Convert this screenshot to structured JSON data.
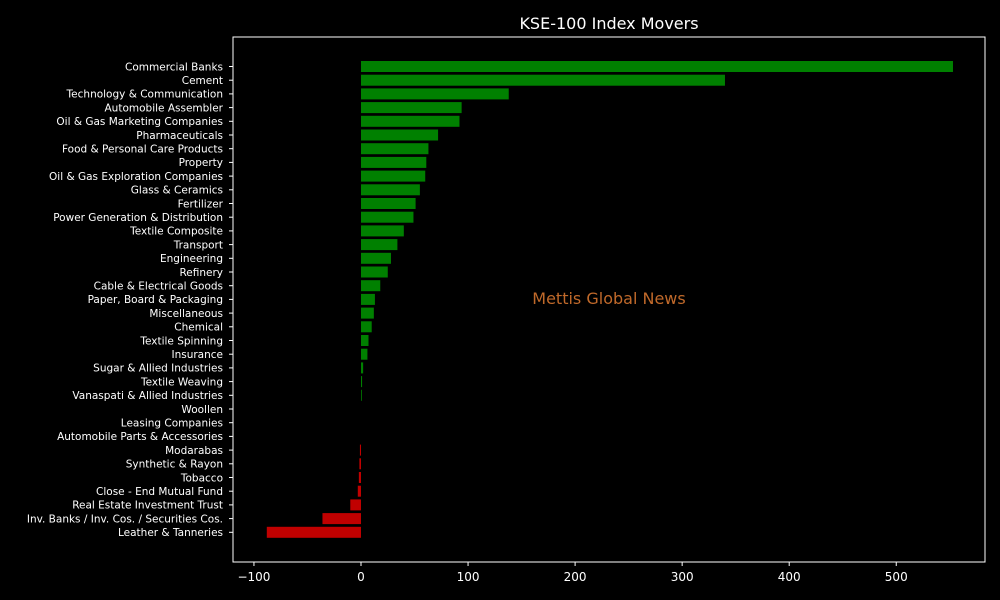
{
  "chart_data": {
    "type": "bar",
    "orientation": "horizontal",
    "title": "KSE-100 Index Movers",
    "watermark": "Mettis Global News",
    "xlabel": "",
    "ylabel": "",
    "xlim": [
      -120,
      585
    ],
    "xticks": [
      -100,
      0,
      100,
      200,
      300,
      400,
      500
    ],
    "xtick_labels": [
      "−100",
      "0",
      "100",
      "200",
      "300",
      "400",
      "500"
    ],
    "grid": false,
    "legend": "none",
    "colors": {
      "background": "#000000",
      "text": "#ffffff",
      "positive": "#008000",
      "negative": "#c00000",
      "watermark": "#c0692a"
    },
    "categories": [
      "Commercial Banks",
      "Cement",
      "Technology & Communication",
      "Automobile Assembler",
      "Oil & Gas Marketing Companies",
      "Pharmaceuticals",
      "Food & Personal Care Products",
      "Property",
      "Oil & Gas Exploration Companies",
      "Glass & Ceramics",
      "Fertilizer",
      "Power Generation & Distribution",
      "Textile Composite",
      "Transport",
      "Engineering",
      "Refinery",
      "Cable & Electrical Goods",
      "Paper, Board & Packaging",
      "Miscellaneous",
      "Chemical",
      "Textile Spinning",
      "Insurance",
      "Sugar & Allied Industries",
      "Textile Weaving",
      "Vanaspati & Allied Industries",
      "Woollen",
      "Leasing Companies",
      "Automobile Parts & Accessories",
      "Modarabas",
      "Synthetic & Rayon",
      "Tobacco",
      "Close - End Mutual Fund",
      "Real Estate Investment Trust",
      "Inv. Banks / Inv. Cos. / Securities Cos.",
      "Leather & Tanneries"
    ],
    "values": [
      553,
      340,
      138,
      94,
      92,
      72,
      63,
      61,
      60,
      55,
      51,
      49,
      40,
      34,
      28,
      25,
      18,
      13,
      12,
      10,
      7,
      6,
      2,
      1,
      0.5,
      0,
      0,
      0,
      -1,
      -1.5,
      -2,
      -3,
      -10,
      -36,
      -88
    ]
  }
}
